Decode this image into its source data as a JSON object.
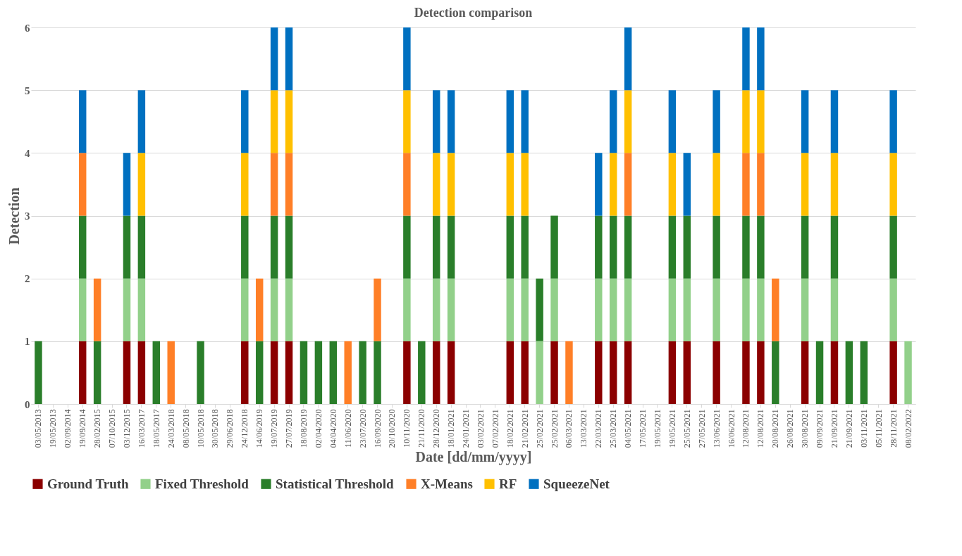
{
  "chart_data": {
    "type": "bar",
    "stacked": true,
    "title": "Detection comparison",
    "xlabel": "Date [dd/mm/yyyy]",
    "ylabel": "Detection",
    "categories": [
      "03/05/2013",
      "19/05/2013",
      "02/09/2014",
      "19/09/2014",
      "28/02/2015",
      "07/10/2015",
      "03/12/2015",
      "16/03/2017",
      "18/05/2017",
      "24/03/2018",
      "08/05/2018",
      "10/05/2018",
      "30/05/2018",
      "29/06/2018",
      "24/12/2018",
      "14/06/2019",
      "19/07/2019",
      "27/07/2019",
      "18/08/2019",
      "02/04/2020",
      "04/04/2020",
      "11/06/2020",
      "23/07/2020",
      "16/09/2020",
      "20/10/2020",
      "10/11/2020",
      "21/11/2020",
      "28/12/2020",
      "18/01/2021",
      "24/01/2021",
      "03/02/2021",
      "07/02/2021",
      "18/02/2021",
      "21/02/2021",
      "25/02/2021",
      "25/02/2021",
      "06/03/2021",
      "13/03/2021",
      "22/03/2021",
      "25/03/2021",
      "04/05/2021",
      "17/05/2021",
      "19/05/2021",
      "19/05/2021",
      "25/05/2021",
      "27/05/2021",
      "13/06/2021",
      "16/06/2021",
      "12/08/2021",
      "12/08/2021",
      "20/08/2021",
      "26/08/2021",
      "30/08/2021",
      "09/09/2021",
      "21/09/2021",
      "21/09/2021",
      "03/11/2021",
      "05/11/2021",
      "28/11/2021",
      "08/02/2022"
    ],
    "series": [
      {
        "name": "Ground Truth",
        "color": "#8b0000",
        "values": [
          0,
          0,
          0,
          1,
          0,
          0,
          1,
          1,
          0,
          0,
          0,
          0,
          0,
          0,
          1,
          0,
          1,
          1,
          0,
          0,
          0,
          0,
          0,
          0,
          0,
          1,
          0,
          1,
          1,
          0,
          0,
          0,
          1,
          1,
          0,
          1,
          0,
          0,
          1,
          1,
          1,
          0,
          0,
          1,
          1,
          0,
          1,
          0,
          1,
          1,
          0,
          0,
          1,
          0,
          1,
          0,
          0,
          0,
          1,
          0
        ]
      },
      {
        "name": "Fixed Threshold",
        "color": "#92d08a",
        "values": [
          0,
          0,
          0,
          1,
          0,
          0,
          1,
          1,
          0,
          0,
          0,
          0,
          0,
          0,
          1,
          0,
          1,
          1,
          0,
          0,
          0,
          0,
          0,
          0,
          0,
          1,
          0,
          1,
          1,
          0,
          0,
          0,
          1,
          1,
          1,
          1,
          0,
          0,
          1,
          1,
          1,
          0,
          0,
          1,
          1,
          0,
          1,
          0,
          1,
          1,
          0,
          0,
          1,
          0,
          1,
          0,
          0,
          0,
          1,
          1
        ]
      },
      {
        "name": "Statistical Threshold",
        "color": "#2a7e2a",
        "values": [
          1,
          0,
          0,
          1,
          1,
          0,
          1,
          1,
          1,
          0,
          0,
          1,
          0,
          0,
          1,
          1,
          1,
          1,
          1,
          1,
          1,
          0,
          1,
          1,
          0,
          1,
          1,
          1,
          1,
          0,
          0,
          0,
          1,
          1,
          1,
          1,
          0,
          0,
          1,
          1,
          1,
          0,
          0,
          1,
          1,
          0,
          1,
          0,
          1,
          1,
          1,
          0,
          1,
          1,
          1,
          1,
          1,
          0,
          1,
          0
        ]
      },
      {
        "name": "X-Means",
        "color": "#ff7f27",
        "values": [
          0,
          0,
          0,
          1,
          1,
          0,
          0,
          0,
          0,
          1,
          0,
          0,
          0,
          0,
          0,
          1,
          1,
          1,
          0,
          0,
          0,
          1,
          0,
          1,
          0,
          1,
          0,
          0,
          0,
          0,
          0,
          0,
          0,
          0,
          0,
          0,
          1,
          0,
          0,
          0,
          1,
          0,
          0,
          0,
          0,
          0,
          0,
          0,
          1,
          1,
          1,
          0,
          0,
          0,
          0,
          0,
          0,
          0,
          0,
          0
        ]
      },
      {
        "name": "RF",
        "color": "#ffc000",
        "values": [
          0,
          0,
          0,
          0,
          0,
          0,
          0,
          1,
          0,
          0,
          0,
          0,
          0,
          0,
          1,
          0,
          1,
          1,
          0,
          0,
          0,
          0,
          0,
          0,
          0,
          1,
          0,
          1,
          1,
          0,
          0,
          0,
          1,
          1,
          0,
          0,
          0,
          0,
          0,
          1,
          1,
          0,
          0,
          1,
          0,
          0,
          1,
          0,
          1,
          1,
          0,
          0,
          1,
          0,
          1,
          0,
          0,
          0,
          1,
          0
        ]
      },
      {
        "name": "SqueezeNet",
        "color": "#0070c0",
        "values": [
          0,
          0,
          0,
          1,
          0,
          0,
          1,
          1,
          0,
          0,
          0,
          0,
          0,
          0,
          1,
          0,
          1,
          1,
          0,
          0,
          0,
          0,
          0,
          0,
          0,
          1,
          0,
          1,
          1,
          0,
          0,
          0,
          1,
          1,
          0,
          0,
          0,
          0,
          1,
          1,
          1,
          0,
          0,
          1,
          1,
          0,
          1,
          0,
          1,
          1,
          0,
          0,
          1,
          0,
          1,
          0,
          0,
          0,
          1,
          0
        ]
      }
    ],
    "ylim": [
      0,
      6
    ],
    "yticks": [
      0,
      1,
      2,
      3,
      4,
      5,
      6
    ],
    "grid": "y",
    "legend": "bottom"
  }
}
